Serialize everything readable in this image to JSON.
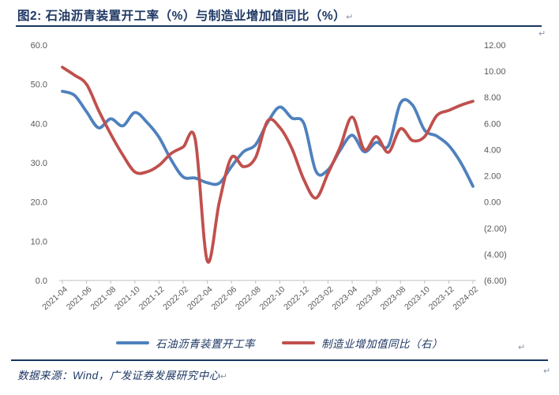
{
  "title": {
    "text": "图2:  石油沥青装置开工率（%）与制造业增加值同比（%）"
  },
  "marks": {
    "return": "↵"
  },
  "source": {
    "text": "数据来源：Wind，广发证券发展研究中心"
  },
  "legend": {
    "items": [
      {
        "label": "石油沥青装置开工率",
        "color": "#4f81bd"
      },
      {
        "label": "制造业增加值同比（右）",
        "color": "#c0504d"
      }
    ]
  },
  "colors": {
    "blue_series": "#4f81bd",
    "red_series": "#c0504d",
    "navy_text": "#1f3864",
    "rule": "#17375e",
    "axis_text": "#595959",
    "axis_line": "#bfbfbf"
  },
  "chart_data": {
    "type": "line",
    "x": [
      "2021-04",
      "2021-05",
      "2021-06",
      "2021-07",
      "2021-08",
      "2021-09",
      "2021-10",
      "2021-11",
      "2021-12",
      "2022-01",
      "2022-02",
      "2022-03",
      "2022-04",
      "2022-05",
      "2022-06",
      "2022-07",
      "2022-08",
      "2022-09",
      "2022-10",
      "2022-11",
      "2022-12",
      "2023-01",
      "2023-02",
      "2023-03",
      "2023-04",
      "2023-05",
      "2023-06",
      "2023-07",
      "2023-08",
      "2023-09",
      "2023-10",
      "2023-11",
      "2023-12",
      "2024-01",
      "2024-02"
    ],
    "series": [
      {
        "name": "石油沥青装置开工率",
        "axis": "left",
        "color": "#4f81bd",
        "values": [
          48.2,
          47.2,
          43.0,
          38.9,
          41.2,
          39.4,
          42.8,
          40.3,
          36.5,
          30.8,
          26.4,
          26.1,
          24.9,
          24.8,
          29.0,
          32.8,
          34.6,
          40.3,
          44.2,
          41.4,
          40.0,
          27.8,
          28.2,
          33.2,
          37.0,
          32.8,
          35.2,
          34.3,
          45.2,
          44.7,
          38.3,
          36.8,
          34.4,
          30.0,
          24.0
        ]
      },
      {
        "name": "制造业增加值同比（右）",
        "axis": "right",
        "color": "#c0504d",
        "values": [
          10.3,
          9.7,
          9.0,
          7.0,
          5.2,
          3.6,
          2.3,
          2.3,
          2.8,
          3.7,
          4.2,
          4.8,
          -4.5,
          0.0,
          3.4,
          2.7,
          3.4,
          6.2,
          5.7,
          4.1,
          1.7,
          0.3,
          2.2,
          4.2,
          6.5,
          4.0,
          5.0,
          3.8,
          5.6,
          4.7,
          5.0,
          6.6,
          7.0,
          7.4,
          7.7
        ]
      }
    ],
    "left_axis": {
      "min": 0,
      "max": 60,
      "ticks": [
        "60.0",
        "50.0",
        "40.0",
        "30.0",
        "20.0",
        "10.0",
        "0.0"
      ]
    },
    "right_axis": {
      "min": -6,
      "max": 12,
      "ticks": [
        "12.00",
        "10.00",
        "8.00",
        "6.00",
        "4.00",
        "2.00",
        "0.00",
        "(2.00)",
        "(4.00)",
        "(6.00)"
      ]
    },
    "x_tick_labels": [
      "2021-04",
      "2021-06",
      "2021-08",
      "2021-10",
      "2021-12",
      "2022-02",
      "2022-04",
      "2022-06",
      "2022-08",
      "2022-10",
      "2022-12",
      "2023-02",
      "2023-04",
      "2023-06",
      "2023-08",
      "2023-10",
      "2023-12",
      "2024-02"
    ],
    "grid": false,
    "legend_position": "bottom"
  }
}
